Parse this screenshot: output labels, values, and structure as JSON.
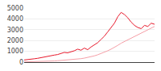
{
  "chart_data": {
    "type": "line",
    "x": [
      1,
      2,
      3,
      4,
      5,
      6,
      7,
      8,
      9,
      10,
      11,
      12,
      13,
      14,
      15,
      16,
      17,
      18,
      19,
      20,
      21,
      22,
      23,
      24,
      25,
      26,
      27,
      28,
      29,
      30,
      31,
      32,
      33,
      34,
      35,
      36,
      37,
      38,
      39,
      40
    ],
    "series": [
      {
        "color": "#f5a0a8",
        "values": [
          20,
          25,
          30,
          35,
          40,
          50,
          60,
          70,
          90,
          110,
          130,
          150,
          170,
          190,
          210,
          240,
          280,
          320,
          370,
          430,
          500,
          580,
          680,
          790,
          920,
          1050,
          1200,
          1350,
          1550,
          1750,
          1900,
          2050,
          2200,
          2400,
          2550,
          2700,
          2850,
          3000,
          3150,
          3300
        ]
      },
      {
        "color": "#e8192c",
        "values": [
          200,
          220,
          280,
          310,
          350,
          420,
          480,
          520,
          580,
          650,
          700,
          820,
          900,
          860,
          950,
          1050,
          1200,
          1100,
          1300,
          1150,
          1400,
          1600,
          1800,
          2100,
          2400,
          2800,
          3200,
          3600,
          4200,
          4600,
          4400,
          4100,
          3700,
          3400,
          3200,
          3100,
          3400,
          3300,
          3600,
          3500
        ]
      }
    ],
    "xlim": [
      1,
      40
    ],
    "xticks": [
      1,
      5,
      10,
      15,
      20,
      25,
      30,
      35,
      40
    ],
    "ylim": [
      0,
      5000
    ],
    "yticks": [
      0,
      1000,
      2000,
      3000,
      4000,
      5000
    ],
    "grid": "y",
    "tick_labels": "y"
  }
}
